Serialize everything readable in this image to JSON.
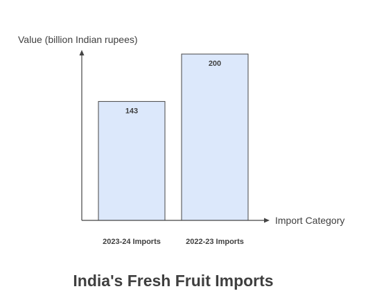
{
  "chart_data": {
    "type": "bar",
    "title": "India's Fresh Fruit Imports",
    "xlabel": "Import Category",
    "ylabel": "Value (billion Indian rupees)",
    "categories": [
      "2023-24 Imports",
      "2022-23 Imports"
    ],
    "values": [
      143,
      200
    ],
    "ylim": [
      0,
      200
    ],
    "grid": false,
    "legend": "none",
    "bar_fill": "#dce8fb",
    "bar_stroke": "#444444",
    "axis_color": "#444444",
    "text_color": "#3f3f3f"
  }
}
